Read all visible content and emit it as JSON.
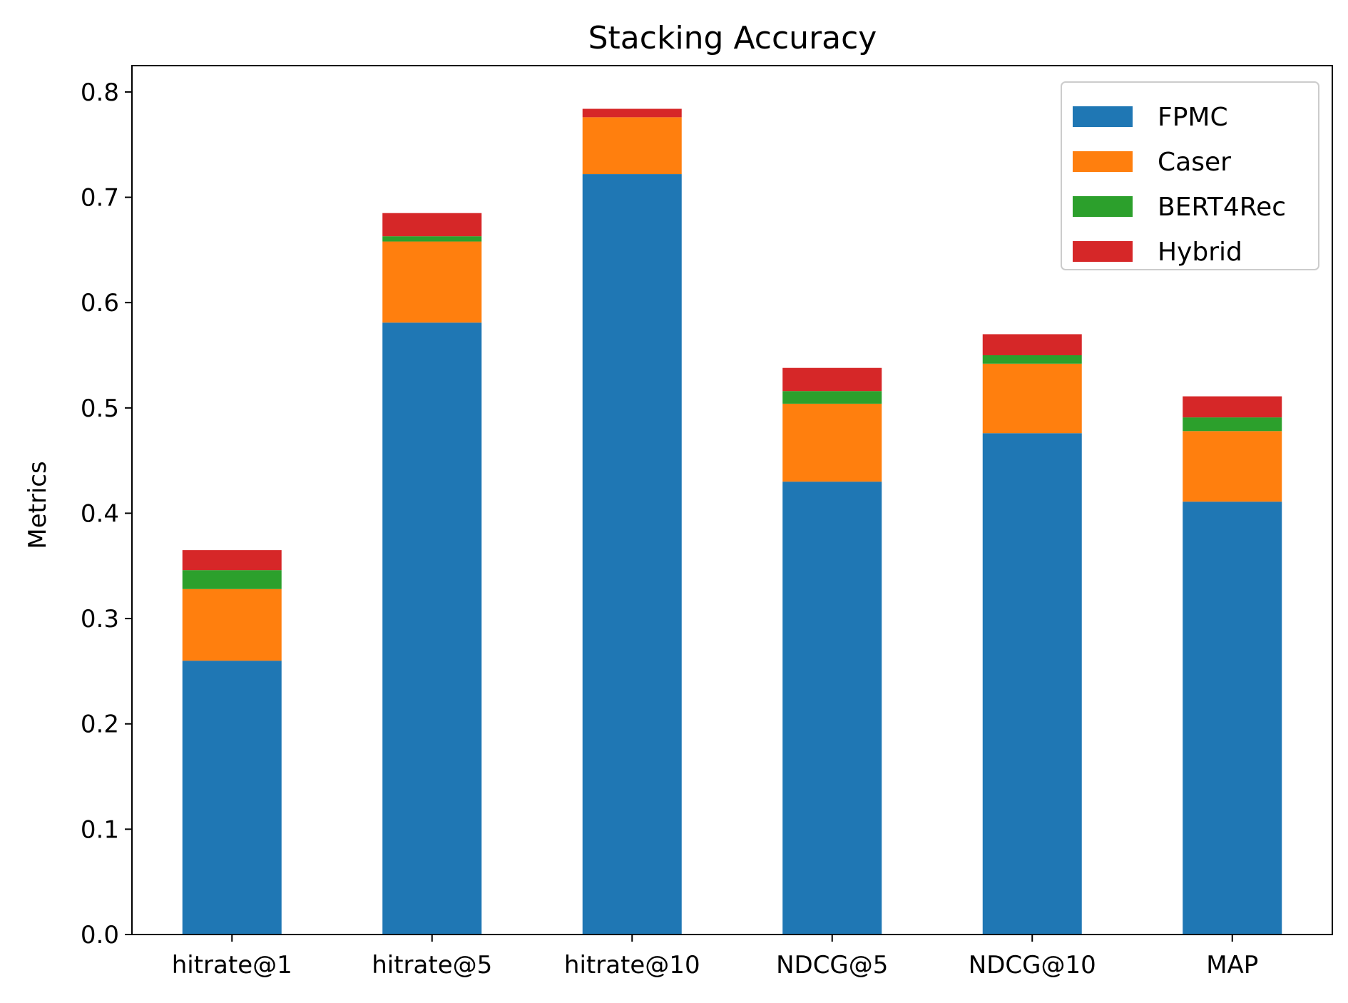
{
  "chart_data": {
    "type": "bar",
    "stacked": true,
    "title": "Stacking Accuracy",
    "xlabel": "",
    "ylabel": "Metrics",
    "ylim": [
      0,
      0.825
    ],
    "yticks": [
      "0.0",
      "0.1",
      "0.2",
      "0.3",
      "0.4",
      "0.5",
      "0.6",
      "0.7",
      "0.8"
    ],
    "categories": [
      "hitrate@1",
      "hitrate@5",
      "hitrate@10",
      "NDCG@5",
      "NDCG@10",
      "MAP"
    ],
    "series": [
      {
        "name": "FPMC",
        "color": "#1f77b4",
        "values": [
          0.26,
          0.581,
          0.722,
          0.43,
          0.476,
          0.411
        ]
      },
      {
        "name": "Caser",
        "color": "#ff7f0e",
        "values": [
          0.068,
          0.077,
          0.054,
          0.074,
          0.066,
          0.067
        ]
      },
      {
        "name": "BERT4Rec",
        "color": "#2ca02c",
        "values": [
          0.018,
          0.005,
          0.0,
          0.012,
          0.008,
          0.013
        ]
      },
      {
        "name": "Hybrid",
        "color": "#d62728",
        "values": [
          0.019,
          0.022,
          0.008,
          0.022,
          0.02,
          0.02
        ]
      }
    ],
    "grid": false,
    "legend_position": "top-right"
  }
}
